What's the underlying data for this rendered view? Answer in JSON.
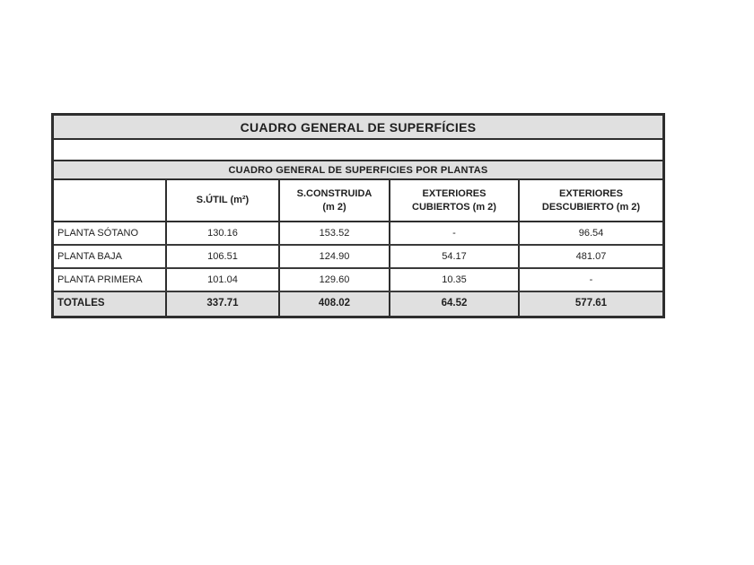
{
  "table": {
    "title": "CUADRO GENERAL DE SUPERFÍCIES",
    "subtitle": "CUADRO GENERAL DE SUPERFICIES POR PLANTAS",
    "columns": [
      {
        "line1": "",
        "line2": ""
      },
      {
        "line1": "S.ÚTIL (m²)",
        "line2": ""
      },
      {
        "line1": "S.CONSTRUIDA",
        "line2": "(m 2)"
      },
      {
        "line1": "EXTERIORES",
        "line2": "CUBIERTOS (m 2)"
      },
      {
        "line1": "EXTERIORES",
        "line2": "DESCUBIERTO (m 2)"
      }
    ],
    "rows": [
      {
        "label": "PLANTA SÓTANO",
        "sutil": "130.16",
        "sconstruida": "153.52",
        "ext_cubiertos": "-",
        "ext_descubierto": "96.54"
      },
      {
        "label": "PLANTA BAJA",
        "sutil": "106.51",
        "sconstruida": "124.90",
        "ext_cubiertos": "54.17",
        "ext_descubierto": "481.07"
      },
      {
        "label": "PLANTA PRIMERA",
        "sutil": "101.04",
        "sconstruida": "129.60",
        "ext_cubiertos": "10.35",
        "ext_descubierto": "-"
      }
    ],
    "totals": {
      "label": "TOTALES",
      "sutil": "337.71",
      "sconstruida": "408.02",
      "ext_cubiertos": "64.52",
      "ext_descubierto": "577.61"
    },
    "colors": {
      "band_gray": "#e0e0e0",
      "border_dark": "#2e2e2e",
      "text": "#1f1f1f"
    }
  }
}
